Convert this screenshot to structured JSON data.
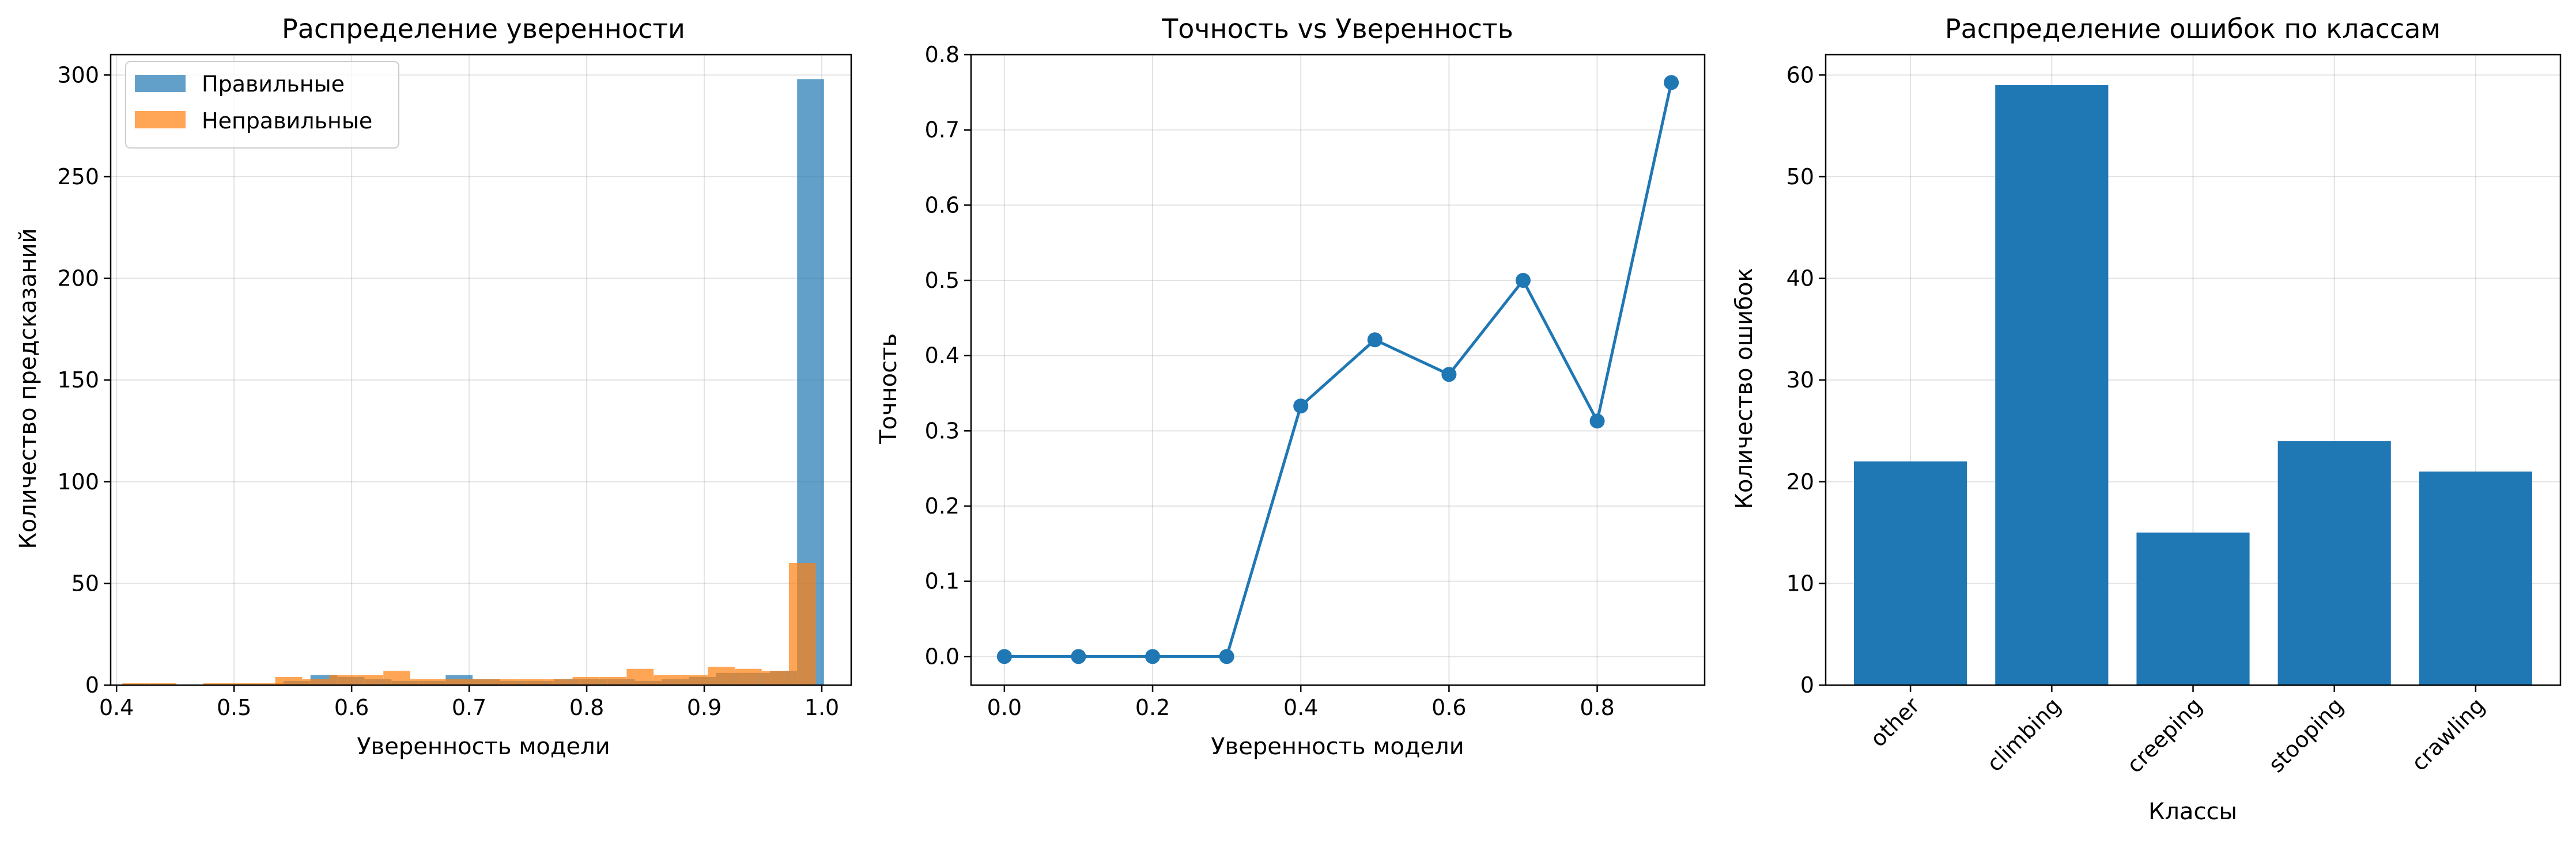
{
  "chart_data": [
    {
      "type": "bar",
      "subtype": "histogram",
      "title": "Распределение уверенности",
      "xlabel": "Уверенность модели",
      "ylabel": "Количество предсказаний",
      "xlim": [
        0.395,
        1.025
      ],
      "ylim": [
        0,
        310
      ],
      "xticks": [
        "0.4",
        "0.5",
        "0.6",
        "0.7",
        "0.8",
        "0.9",
        "1.0"
      ],
      "yticks": [
        "0",
        "50",
        "100",
        "150",
        "200",
        "250",
        "300"
      ],
      "grid": true,
      "legend_position": "top-left",
      "bin_width": 0.0229,
      "series": [
        {
          "name": "Правильные",
          "color": "#1f77b4",
          "bins": [
            [
              0.542,
              2
            ],
            [
              0.565,
              5
            ],
            [
              0.588,
              4
            ],
            [
              0.611,
              3
            ],
            [
              0.634,
              2
            ],
            [
              0.657,
              2
            ],
            [
              0.68,
              5
            ],
            [
              0.703,
              3
            ],
            [
              0.726,
              2
            ],
            [
              0.749,
              2
            ],
            [
              0.772,
              3
            ],
            [
              0.795,
              3
            ],
            [
              0.818,
              3
            ],
            [
              0.841,
              2
            ],
            [
              0.864,
              3
            ],
            [
              0.887,
              4
            ],
            [
              0.91,
              6
            ],
            [
              0.933,
              6
            ],
            [
              0.956,
              7
            ],
            [
              0.979,
              298
            ]
          ]
        },
        {
          "name": "Неправильные",
          "color": "#ff7f0e",
          "bins": [
            [
              0.405,
              1
            ],
            [
              0.428,
              1
            ],
            [
              0.451,
              0
            ],
            [
              0.474,
              1
            ],
            [
              0.497,
              1
            ],
            [
              0.52,
              1
            ],
            [
              0.535,
              4
            ],
            [
              0.558,
              3
            ],
            [
              0.581,
              5
            ],
            [
              0.604,
              5
            ],
            [
              0.627,
              7
            ],
            [
              0.65,
              3
            ],
            [
              0.673,
              3
            ],
            [
              0.696,
              3
            ],
            [
              0.719,
              3
            ],
            [
              0.742,
              3
            ],
            [
              0.765,
              3
            ],
            [
              0.788,
              4
            ],
            [
              0.811,
              4
            ],
            [
              0.834,
              8
            ],
            [
              0.857,
              5
            ],
            [
              0.88,
              5
            ],
            [
              0.903,
              9
            ],
            [
              0.926,
              8
            ],
            [
              0.949,
              7
            ],
            [
              0.972,
              60
            ]
          ]
        }
      ]
    },
    {
      "type": "line",
      "title": "Точность vs Уверенность",
      "xlabel": "Уверенность модели",
      "ylabel": "Точность",
      "xlim": [
        -0.045,
        0.945
      ],
      "ylim": [
        -0.038,
        0.8
      ],
      "xticks": [
        "0.0",
        "0.2",
        "0.4",
        "0.6",
        "0.8"
      ],
      "yticks": [
        "0.0",
        "0.1",
        "0.2",
        "0.3",
        "0.4",
        "0.5",
        "0.6",
        "0.7",
        "0.8"
      ],
      "grid": true,
      "color": "#1f77b4",
      "x": [
        0.0,
        0.1,
        0.2,
        0.3,
        0.4,
        0.5,
        0.6,
        0.7,
        0.8,
        0.9
      ],
      "y": [
        0.0,
        0.0,
        0.0,
        0.0,
        0.333,
        0.421,
        0.375,
        0.5,
        0.313,
        0.763
      ]
    },
    {
      "type": "bar",
      "title": "Распределение ошибок по классам",
      "xlabel": "Классы",
      "ylabel": "Количество ошибок",
      "ylim": [
        0,
        62
      ],
      "yticks": [
        "0",
        "10",
        "20",
        "30",
        "40",
        "50",
        "60"
      ],
      "grid": true,
      "color": "#1f77b4",
      "categories": [
        "other",
        "climbing",
        "creeping",
        "stooping",
        "crawling"
      ],
      "values": [
        22,
        59,
        15,
        24,
        21
      ]
    }
  ]
}
